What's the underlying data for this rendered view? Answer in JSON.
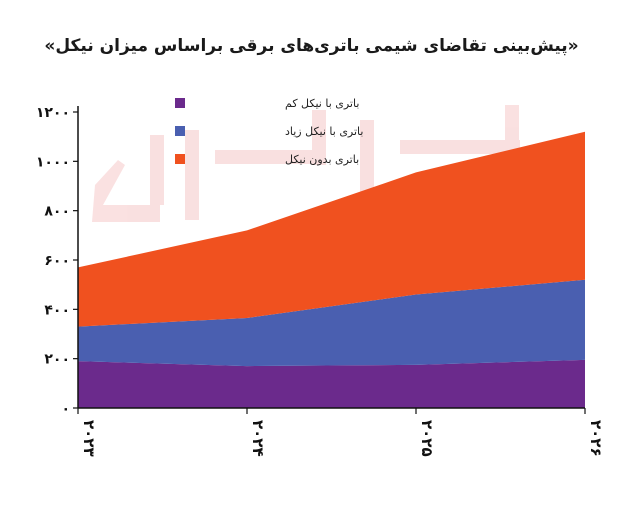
{
  "chart_data": {
    "type": "area",
    "stacked": true,
    "title": "«پیش‌بینی تقاضای شیمی باتری‌های برقی براساس میزان نیکل»",
    "xlabel": "",
    "ylabel": "",
    "x": [
      "۲۰۲۳",
      "۲۰۲۴",
      "۲۰۲۵",
      "۲۰۲۶"
    ],
    "ylim": [
      0,
      1200
    ],
    "y_ticks": [
      "۰",
      "۲۰۰",
      "۴۰۰",
      "۶۰۰",
      "۸۰۰",
      "۱۰۰۰",
      "۱۲۰۰"
    ],
    "series": [
      {
        "name": "باتری با نیکل کم",
        "values": [
          190,
          170,
          175,
          195
        ],
        "color": "#6b2a8c"
      },
      {
        "name": "باتری با نیکل زیاد",
        "values": [
          140,
          195,
          285,
          325
        ],
        "color": "#4a5fb0"
      },
      {
        "name": "باتری بدون نیکل",
        "values": [
          240,
          355,
          495,
          600
        ],
        "color": "#f0511f"
      }
    ],
    "legend_position": "top-left",
    "grid": false
  }
}
